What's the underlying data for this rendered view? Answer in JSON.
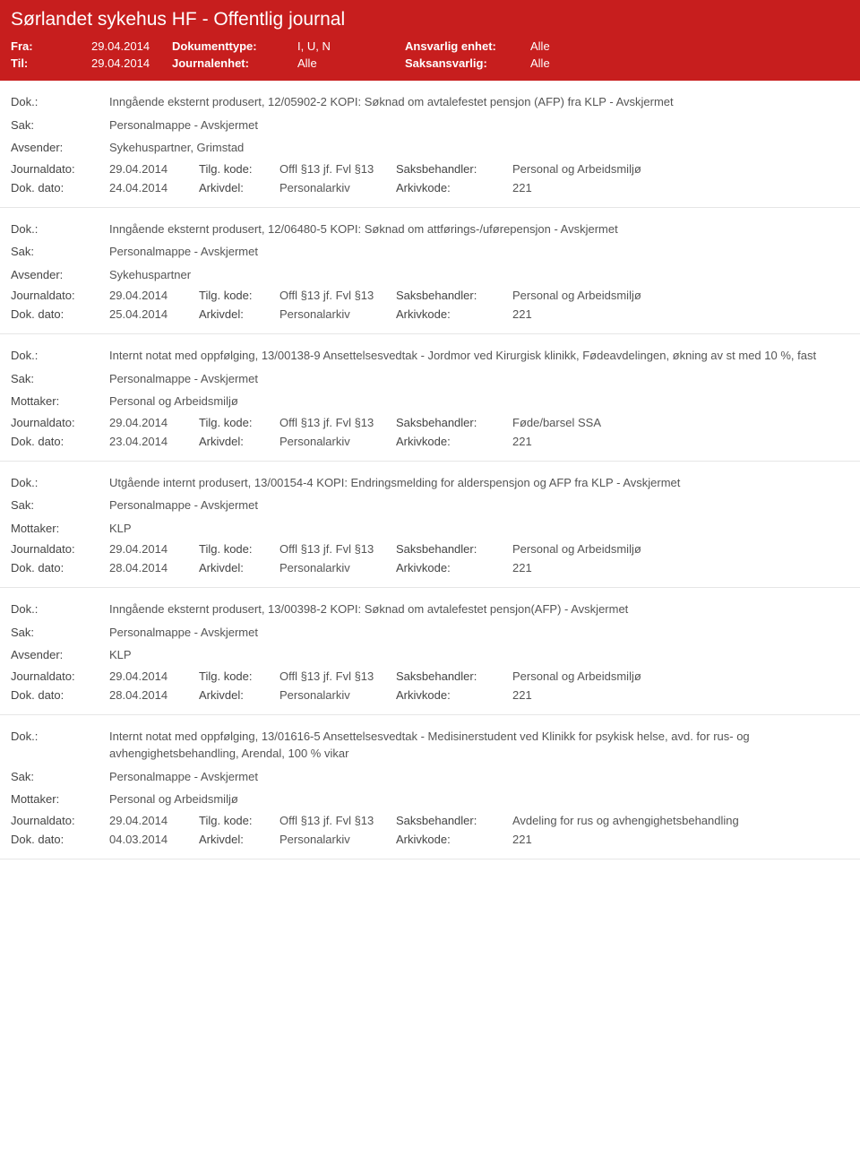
{
  "header": {
    "title": "Sørlandet sykehus HF - Offentlig journal",
    "fra_label": "Fra:",
    "fra_value": "29.04.2014",
    "til_label": "Til:",
    "til_value": "29.04.2014",
    "doktype_label": "Dokumenttype:",
    "doktype_value": "I, U, N",
    "journalenhet_label": "Journalenhet:",
    "journalenhet_value": "Alle",
    "ansvarlig_label": "Ansvarlig enhet:",
    "ansvarlig_value": "Alle",
    "saksansvarlig_label": "Saksansvarlig:",
    "saksansvarlig_value": "Alle"
  },
  "labels": {
    "dok": "Dok.:",
    "sak": "Sak:",
    "avsender": "Avsender:",
    "mottaker": "Mottaker:",
    "journaldato": "Journaldato:",
    "dokdato": "Dok. dato:",
    "tilgkode": "Tilg. kode:",
    "arkivdel": "Arkivdel:",
    "saksbehandler": "Saksbehandler:",
    "arkivkode": "Arkivkode:"
  },
  "common": {
    "journaldato": "29.04.2014",
    "tilgkode": "Offl §13 jf. Fvl §13",
    "arkivdel": "Personalarkiv",
    "arkivkode": "221",
    "personalmappe": "Personalmappe - Avskjermet"
  },
  "entries": [
    {
      "dok": "Inngående eksternt produsert, 12/05902-2 KOPI: Søknad om avtalefestet pensjon (AFP) fra KLP - Avskjermet",
      "sak": "Personalmappe - Avskjermet",
      "party_label": "Avsender:",
      "party_value": "Sykehuspartner, Grimstad",
      "dokdato": "24.04.2014",
      "saksbehandler": "Personal og Arbeidsmiljø"
    },
    {
      "dok": "Inngående eksternt produsert, 12/06480-5 KOPI: Søknad om attførings-/uførepensjon - Avskjermet",
      "sak": "Personalmappe - Avskjermet",
      "party_label": "Avsender:",
      "party_value": "Sykehuspartner",
      "dokdato": "25.04.2014",
      "saksbehandler": "Personal og Arbeidsmiljø"
    },
    {
      "dok": "Internt notat med oppfølging, 13/00138-9 Ansettelsesvedtak - Jordmor ved Kirurgisk klinikk, Fødeavdelingen, økning av st med 10 %, fast",
      "sak": "Personalmappe - Avskjermet",
      "party_label": "Mottaker:",
      "party_value": "Personal og Arbeidsmiljø",
      "dokdato": "23.04.2014",
      "saksbehandler": "Føde/barsel SSA"
    },
    {
      "dok": "Utgående internt produsert, 13/00154-4 KOPI: Endringsmelding for alderspensjon og AFP fra KLP - Avskjermet",
      "sak": "Personalmappe - Avskjermet",
      "party_label": "Mottaker:",
      "party_value": "KLP",
      "dokdato": "28.04.2014",
      "saksbehandler": "Personal og Arbeidsmiljø"
    },
    {
      "dok": "Inngående eksternt produsert, 13/00398-2 KOPI: Søknad om avtalefestet pensjon(AFP) - Avskjermet",
      "sak": "Personalmappe - Avskjermet",
      "party_label": "Avsender:",
      "party_value": "KLP",
      "dokdato": "28.04.2014",
      "saksbehandler": "Personal og Arbeidsmiljø"
    },
    {
      "dok": "Internt notat med oppfølging, 13/01616-5 Ansettelsesvedtak - Medisinerstudent ved Klinikk for psykisk helse, avd. for rus- og avhengighetsbehandling, Arendal, 100 % vikar",
      "sak": "Personalmappe - Avskjermet",
      "party_label": "Mottaker:",
      "party_value": "Personal og Arbeidsmiljø",
      "dokdato": "04.03.2014",
      "saksbehandler": "Avdeling for rus og avhengighetsbehandling"
    }
  ],
  "colors": {
    "header_bg": "#c71e1e",
    "header_text": "#ffffff",
    "body_text": "#555555",
    "label_text": "#444444",
    "divider": "#e6e6e6"
  }
}
